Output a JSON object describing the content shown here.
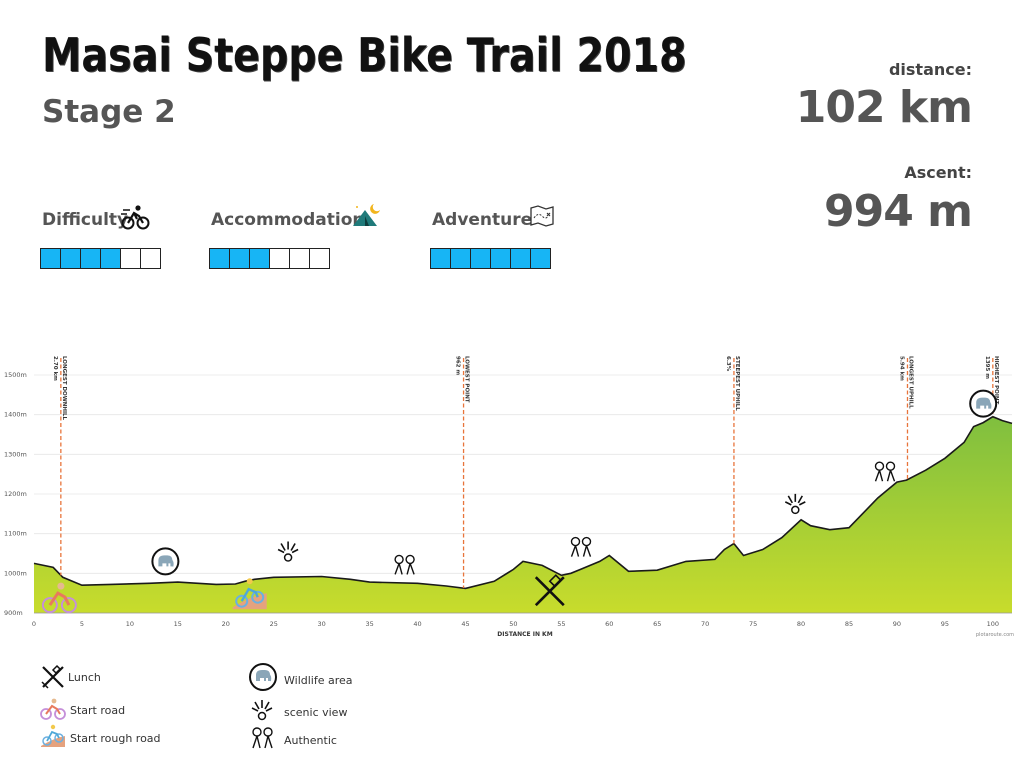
{
  "title": "Masai Steppe Bike Trail 2018",
  "stage": "Stage 2",
  "stats": {
    "distance_label": "distance:",
    "distance_value": "102 km",
    "ascent_label": "Ascent:",
    "ascent_value": "994 m"
  },
  "ratings": [
    {
      "label": "Difficulty",
      "icon": "cyclist-icon",
      "filled": 4,
      "total": 6
    },
    {
      "label": "Accommodation",
      "icon": "tent-icon",
      "filled": 3,
      "total": 6
    },
    {
      "label": "Adventure",
      "icon": "treasure-map-icon",
      "filled": 6,
      "total": 6
    }
  ],
  "colors": {
    "accent": "#17b5f5",
    "fill_top": "#8dc43e",
    "fill_bottom": "#c6dc2e",
    "marker": "#e8743b",
    "line": "#1a1a1a"
  },
  "chart_data": {
    "type": "area",
    "xlabel": "DISTANCE IN KM",
    "ylabel": "",
    "xlim": [
      0,
      102
    ],
    "ylim": [
      900,
      1500
    ],
    "xticks": [
      0,
      5,
      10,
      15,
      20,
      25,
      30,
      35,
      40,
      45,
      50,
      55,
      60,
      65,
      70,
      75,
      80,
      85,
      90,
      95,
      100
    ],
    "yticks": [
      "900m",
      "1000m",
      "1100m",
      "1200m",
      "1300m",
      "1400m",
      "1500m"
    ],
    "ytick_values": [
      900,
      1000,
      1100,
      1200,
      1300,
      1400,
      1500
    ],
    "x": [
      0,
      2,
      3,
      5,
      8,
      12,
      15,
      19,
      21,
      22,
      23,
      25,
      30,
      33,
      35,
      40,
      43,
      45,
      48,
      50,
      51,
      53,
      55,
      56,
      57,
      59,
      60,
      62,
      65,
      68,
      71,
      72,
      73,
      74,
      76,
      78,
      80,
      81,
      83,
      85,
      86,
      88,
      90,
      91,
      93,
      95,
      97,
      98,
      99,
      100,
      101,
      102
    ],
    "y": [
      1025,
      1015,
      990,
      970,
      972,
      975,
      978,
      972,
      973,
      980,
      985,
      990,
      992,
      985,
      978,
      975,
      968,
      962,
      980,
      1010,
      1030,
      1020,
      995,
      1000,
      1010,
      1030,
      1045,
      1005,
      1008,
      1030,
      1035,
      1060,
      1075,
      1045,
      1060,
      1090,
      1135,
      1120,
      1110,
      1115,
      1140,
      1190,
      1230,
      1235,
      1260,
      1290,
      1330,
      1370,
      1380,
      1395,
      1385,
      1378
    ],
    "annotations": [
      {
        "x": 2.8,
        "label": "LONGEST DOWNHILL",
        "value": "2.70 km"
      },
      {
        "x": 44.8,
        "label": "LOWEST POINT",
        "value": "962 m"
      },
      {
        "x": 73.0,
        "label": "STEEPEST UPHILL",
        "value": "6.3%"
      },
      {
        "x": 91.1,
        "label": "LONGEST UPHILL",
        "value": "5.94 km"
      },
      {
        "x": 100.0,
        "label": "HIGHEST POINT",
        "value": "1395 m"
      }
    ],
    "markers": [
      {
        "x": 2.6,
        "y": 935,
        "icon": "start-road-icon"
      },
      {
        "x": 13.7,
        "y": 1030,
        "icon": "elephant-icon"
      },
      {
        "x": 22.5,
        "y": 945,
        "icon": "start-rough-road-icon"
      },
      {
        "x": 26.5,
        "y": 1055,
        "icon": "scenic-view-icon"
      },
      {
        "x": 38.6,
        "y": 1020,
        "icon": "authentic-icon"
      },
      {
        "x": 53.8,
        "y": 955,
        "icon": "lunch-icon"
      },
      {
        "x": 57.0,
        "y": 1065,
        "icon": "authentic-icon"
      },
      {
        "x": 79.4,
        "y": 1175,
        "icon": "scenic-view-icon"
      },
      {
        "x": 88.7,
        "y": 1255,
        "icon": "authentic-icon"
      },
      {
        "x": 99.0,
        "y": 1428,
        "icon": "elephant-icon"
      }
    ],
    "watermark": "plotaroute.com",
    "grid": true
  },
  "legend": {
    "lunch": "Lunch",
    "start_road": "Start road",
    "start_rough_road": "Start rough road",
    "wildlife": "Wildlife area",
    "scenic": "scenic view",
    "authentic": "Authentic"
  }
}
